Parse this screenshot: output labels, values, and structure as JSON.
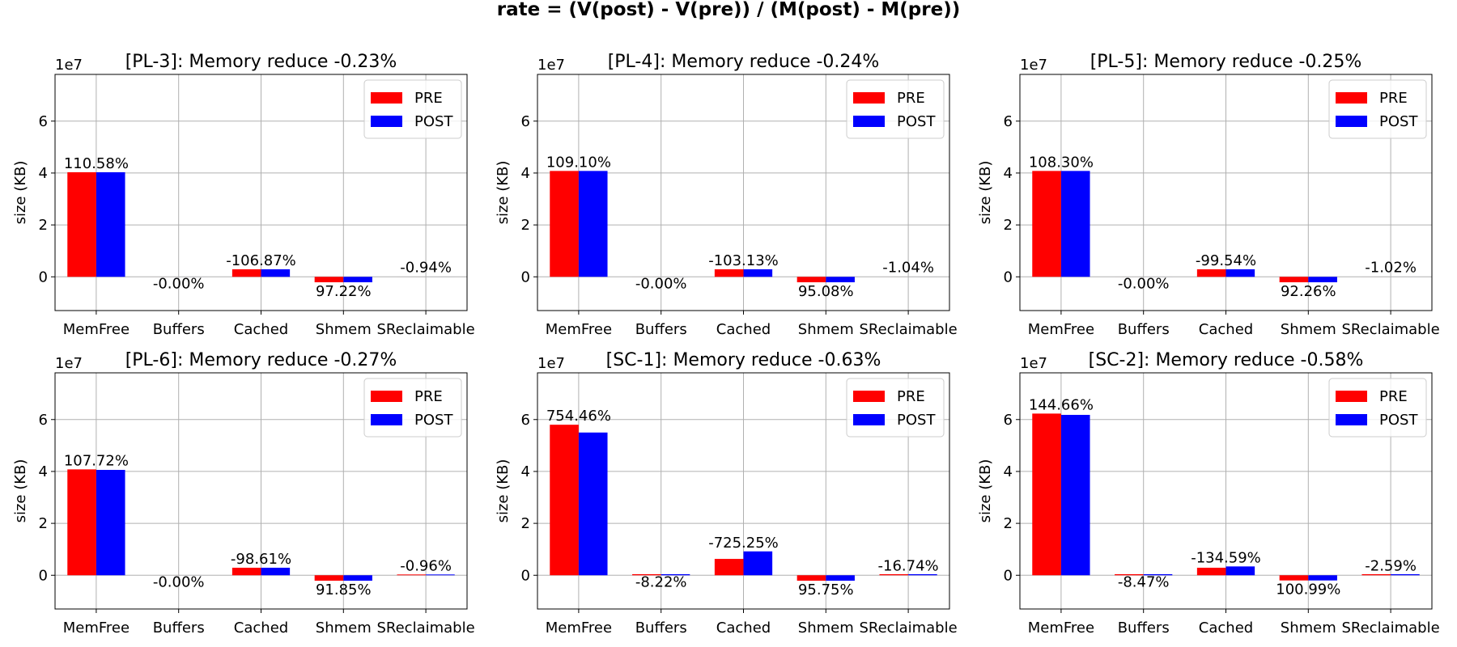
{
  "figure": {
    "suptitle": "rate = (V(post) - V(pre)) / (M(post) - M(pre))"
  },
  "colors": {
    "pre": "#ff0000",
    "post": "#0000ff",
    "grid": "#b0b0b0"
  },
  "chart_data": [
    {
      "type": "bar",
      "title": "[PL-3]: Memory reduce -0.23%",
      "xlabel": "",
      "ylabel": "size (KB)",
      "y_exponent_label": "1e7",
      "ylim": [
        -13000000,
        78000000
      ],
      "yticks": [
        0,
        20000000,
        40000000,
        60000000
      ],
      "ytick_labels": [
        "0",
        "2",
        "4",
        "6"
      ],
      "grid": true,
      "legend": "top-right",
      "categories": [
        "MemFree",
        "Buffers",
        "Cached",
        "Shmem",
        "SReclaimable"
      ],
      "series": [
        {
          "name": "PRE",
          "values": [
            40300000,
            0,
            2900000,
            -2100000,
            0
          ]
        },
        {
          "name": "POST",
          "values": [
            40300000,
            0,
            2900000,
            -2100000,
            0
          ]
        }
      ],
      "annotations": [
        "110.58%",
        "-0.00%",
        "-106.87%",
        "97.22%",
        "-0.94%"
      ]
    },
    {
      "type": "bar",
      "title": "[PL-4]: Memory reduce -0.24%",
      "xlabel": "",
      "ylabel": "size (KB)",
      "y_exponent_label": "1e7",
      "ylim": [
        -13000000,
        78000000
      ],
      "yticks": [
        0,
        20000000,
        40000000,
        60000000
      ],
      "ytick_labels": [
        "0",
        "2",
        "4",
        "6"
      ],
      "grid": true,
      "legend": "top-right",
      "categories": [
        "MemFree",
        "Buffers",
        "Cached",
        "Shmem",
        "SReclaimable"
      ],
      "series": [
        {
          "name": "PRE",
          "values": [
            40800000,
            0,
            2900000,
            -2100000,
            0
          ]
        },
        {
          "name": "POST",
          "values": [
            40800000,
            0,
            2900000,
            -2100000,
            0
          ]
        }
      ],
      "annotations": [
        "109.10%",
        "-0.00%",
        "-103.13%",
        "95.08%",
        "-1.04%"
      ]
    },
    {
      "type": "bar",
      "title": "[PL-5]: Memory reduce -0.25%",
      "xlabel": "",
      "ylabel": "size (KB)",
      "y_exponent_label": "1e7",
      "ylim": [
        -13000000,
        78000000
      ],
      "yticks": [
        0,
        20000000,
        40000000,
        60000000
      ],
      "ytick_labels": [
        "0",
        "2",
        "4",
        "6"
      ],
      "grid": true,
      "legend": "top-right",
      "categories": [
        "MemFree",
        "Buffers",
        "Cached",
        "Shmem",
        "SReclaimable"
      ],
      "series": [
        {
          "name": "PRE",
          "values": [
            40800000,
            0,
            2900000,
            -2100000,
            0
          ]
        },
        {
          "name": "POST",
          "values": [
            40800000,
            0,
            2900000,
            -2100000,
            0
          ]
        }
      ],
      "annotations": [
        "108.30%",
        "-0.00%",
        "-99.54%",
        "92.26%",
        "-1.02%"
      ]
    },
    {
      "type": "bar",
      "title": "[PL-6]: Memory reduce -0.27%",
      "xlabel": "",
      "ylabel": "size (KB)",
      "y_exponent_label": "1e7",
      "ylim": [
        -13000000,
        78000000
      ],
      "yticks": [
        0,
        20000000,
        40000000,
        60000000
      ],
      "ytick_labels": [
        "0",
        "2",
        "4",
        "6"
      ],
      "grid": true,
      "legend": "top-right",
      "categories": [
        "MemFree",
        "Buffers",
        "Cached",
        "Shmem",
        "SReclaimable"
      ],
      "series": [
        {
          "name": "PRE",
          "values": [
            40800000,
            0,
            2900000,
            -2100000,
            300000
          ]
        },
        {
          "name": "POST",
          "values": [
            40600000,
            0,
            2900000,
            -2100000,
            300000
          ]
        }
      ],
      "annotations": [
        "107.72%",
        "-0.00%",
        "-98.61%",
        "91.85%",
        "-0.96%"
      ]
    },
    {
      "type": "bar",
      "title": "[SC-1]: Memory reduce -0.63%",
      "xlabel": "",
      "ylabel": "size (KB)",
      "y_exponent_label": "1e7",
      "ylim": [
        -13000000,
        78000000
      ],
      "yticks": [
        0,
        20000000,
        40000000,
        60000000
      ],
      "ytick_labels": [
        "0",
        "2",
        "4",
        "6"
      ],
      "grid": true,
      "legend": "top-right",
      "categories": [
        "MemFree",
        "Buffers",
        "Cached",
        "Shmem",
        "SReclaimable"
      ],
      "series": [
        {
          "name": "PRE",
          "values": [
            58000000,
            400000,
            6300000,
            -2100000,
            400000
          ]
        },
        {
          "name": "POST",
          "values": [
            55000000,
            400000,
            9200000,
            -2100000,
            400000
          ]
        }
      ],
      "annotations": [
        "754.46%",
        "-8.22%",
        "-725.25%",
        "95.75%",
        "-16.74%"
      ]
    },
    {
      "type": "bar",
      "title": "[SC-2]: Memory reduce -0.58%",
      "xlabel": "",
      "ylabel": "size (KB)",
      "y_exponent_label": "1e7",
      "ylim": [
        -13000000,
        78000000
      ],
      "yticks": [
        0,
        20000000,
        40000000,
        60000000
      ],
      "ytick_labels": [
        "0",
        "2",
        "4",
        "6"
      ],
      "grid": true,
      "legend": "top-right",
      "categories": [
        "MemFree",
        "Buffers",
        "Cached",
        "Shmem",
        "SReclaimable"
      ],
      "series": [
        {
          "name": "PRE",
          "values": [
            62300000,
            400000,
            2900000,
            -2000000,
            400000
          ]
        },
        {
          "name": "POST",
          "values": [
            61800000,
            400000,
            3400000,
            -2000000,
            400000
          ]
        }
      ],
      "annotations": [
        "144.66%",
        "-8.47%",
        "-134.59%",
        "100.99%",
        "-2.59%"
      ]
    }
  ]
}
